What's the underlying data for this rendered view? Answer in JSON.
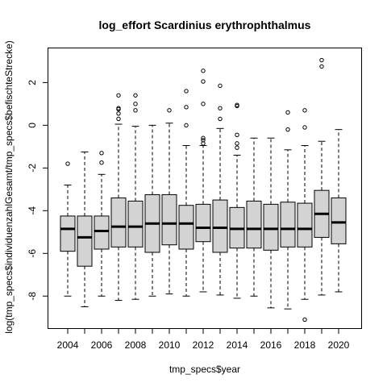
{
  "chart_data": {
    "type": "boxplot",
    "title": "log_effort Scardinius erythrophthalmus",
    "xlabel": "tmp_specs$year",
    "ylabel": "log(tmp_specs$individuenzahlGesamt/tmp_specs$befischteStrecke)",
    "ylim": [
      -9.5,
      3.6
    ],
    "yticks": [
      -8,
      -6,
      -4,
      -2,
      0,
      2
    ],
    "xtick_labels": [
      "2004",
      "2006",
      "2008",
      "2010",
      "2012",
      "2014",
      "2016",
      "2018",
      "2020"
    ],
    "grid": false,
    "colors": {
      "box_fill": "#d3d3d3",
      "stroke": "#000000"
    },
    "years": [
      {
        "year": "2004",
        "whisker_low": -8.0,
        "q1": -5.9,
        "median": -4.85,
        "q3": -4.25,
        "whisker_high": -2.8,
        "outliers": [
          -1.8
        ]
      },
      {
        "year": "2005",
        "whisker_low": -8.5,
        "q1": -6.6,
        "median": -5.25,
        "q3": -4.25,
        "whisker_high": -1.25,
        "outliers": []
      },
      {
        "year": "2006",
        "whisker_low": -8.0,
        "q1": -5.8,
        "median": -4.95,
        "q3": -4.25,
        "whisker_high": -2.3,
        "outliers": [
          -1.75,
          -1.3
        ]
      },
      {
        "year": "2007",
        "whisker_low": -8.2,
        "q1": -5.7,
        "median": -4.75,
        "q3": -3.4,
        "whisker_high": 0.05,
        "outliers": [
          0.3,
          0.55,
          0.75,
          0.8,
          1.4
        ]
      },
      {
        "year": "2008",
        "whisker_low": -8.15,
        "q1": -5.7,
        "median": -4.75,
        "q3": -3.55,
        "whisker_high": -0.05,
        "outliers": [
          0.7,
          1.0,
          1.4
        ]
      },
      {
        "year": "2009",
        "whisker_low": -8.0,
        "q1": -5.95,
        "median": -4.6,
        "q3": -3.25,
        "whisker_high": 0.0,
        "outliers": []
      },
      {
        "year": "2010",
        "whisker_low": -7.9,
        "q1": -5.6,
        "median": -4.6,
        "q3": -3.25,
        "whisker_high": 0.1,
        "outliers": [
          0.7
        ]
      },
      {
        "year": "2011",
        "whisker_low": -8.0,
        "q1": -5.8,
        "median": -4.6,
        "q3": -3.75,
        "whisker_high": -0.95,
        "outliers": [
          0.0,
          0.85,
          1.6
        ]
      },
      {
        "year": "2012",
        "whisker_low": -7.8,
        "q1": -5.45,
        "median": -4.8,
        "q3": -3.7,
        "whisker_high": -0.95,
        "outliers": [
          -0.85,
          -0.7,
          -0.6,
          1.0,
          2.05,
          2.55
        ]
      },
      {
        "year": "2013",
        "whisker_low": -7.95,
        "q1": -5.95,
        "median": -4.8,
        "q3": -3.5,
        "whisker_high": -0.15,
        "outliers": [
          0.3,
          0.8,
          1.85
        ]
      },
      {
        "year": "2014",
        "whisker_low": -8.1,
        "q1": -5.75,
        "median": -4.85,
        "q3": -3.85,
        "whisker_high": -1.4,
        "outliers": [
          -1.05,
          -0.85,
          -0.45,
          0.9,
          0.95
        ]
      },
      {
        "year": "2015",
        "whisker_low": -8.0,
        "q1": -5.75,
        "median": -4.85,
        "q3": -3.55,
        "whisker_high": -0.6,
        "outliers": []
      },
      {
        "year": "2016",
        "whisker_low": -8.55,
        "q1": -5.85,
        "median": -4.85,
        "q3": -3.7,
        "whisker_high": -0.6,
        "outliers": []
      },
      {
        "year": "2017",
        "whisker_low": -8.6,
        "q1": -5.7,
        "median": -4.85,
        "q3": -3.6,
        "whisker_high": -1.15,
        "outliers": [
          -0.2,
          0.6
        ]
      },
      {
        "year": "2018",
        "whisker_low": -8.15,
        "q1": -5.7,
        "median": -4.85,
        "q3": -3.65,
        "whisker_high": -0.95,
        "outliers": [
          -9.1,
          -0.1,
          0.7
        ]
      },
      {
        "year": "2019",
        "whisker_low": -7.95,
        "q1": -5.25,
        "median": -4.15,
        "q3": -3.05,
        "whisker_high": -0.75,
        "outliers": [
          2.75,
          3.05
        ]
      },
      {
        "year": "2020",
        "whisker_low": -7.8,
        "q1": -5.55,
        "median": -4.55,
        "q3": -3.4,
        "whisker_high": -0.2,
        "outliers": []
      }
    ]
  }
}
